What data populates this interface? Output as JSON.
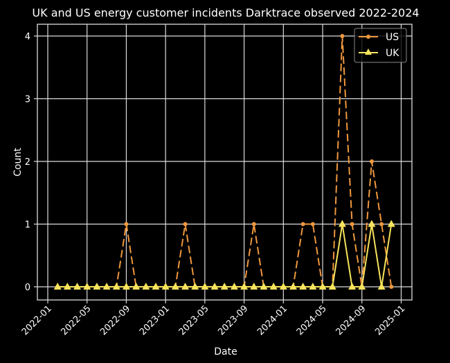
{
  "chart_data": {
    "type": "line",
    "title": "UK and US energy customer incidents Darktrace observed 2022-2024",
    "xlabel": "Date",
    "ylabel": "Count",
    "ylim": [
      -0.2,
      4.2
    ],
    "yticks": [
      "0",
      "1",
      "2",
      "3",
      "4"
    ],
    "xticks": [
      "2022-01",
      "2022-05",
      "2022-09",
      "2023-01",
      "2023-05",
      "2023-09",
      "2024-01",
      "2024-05",
      "2024-09",
      "2025-01"
    ],
    "grid": true,
    "legend_position": "upper right",
    "x": [
      "2022-02",
      "2022-03",
      "2022-04",
      "2022-05",
      "2022-06",
      "2022-07",
      "2022-08",
      "2022-09",
      "2022-10",
      "2022-11",
      "2022-12",
      "2023-01",
      "2023-02",
      "2023-03",
      "2023-04",
      "2023-05",
      "2023-06",
      "2023-07",
      "2023-08",
      "2023-09",
      "2023-10",
      "2023-11",
      "2023-12",
      "2024-01",
      "2024-02",
      "2024-03",
      "2024-04",
      "2024-05",
      "2024-06",
      "2024-07",
      "2024-08",
      "2024-09",
      "2024-10",
      "2024-11",
      "2024-12"
    ],
    "series": [
      {
        "name": "US",
        "color": "#f0983e",
        "marker": "circle",
        "linestyle": "dashed",
        "values": [
          0,
          0,
          0,
          0,
          0,
          0,
          0,
          1,
          0,
          0,
          0,
          0,
          0,
          1,
          0,
          0,
          0,
          0,
          0,
          0,
          1,
          0,
          0,
          0,
          0,
          1,
          1,
          0,
          0,
          4,
          1,
          0,
          2,
          1,
          0
        ]
      },
      {
        "name": "UK",
        "color": "#f8e45c",
        "marker": "triangle",
        "linestyle": "solid",
        "values": [
          0,
          0,
          0,
          0,
          0,
          0,
          0,
          0,
          0,
          0,
          0,
          0,
          0,
          0,
          0,
          0,
          0,
          0,
          0,
          0,
          0,
          0,
          0,
          0,
          0,
          0,
          0,
          0,
          0,
          1,
          0,
          0,
          1,
          0,
          1
        ]
      }
    ]
  }
}
